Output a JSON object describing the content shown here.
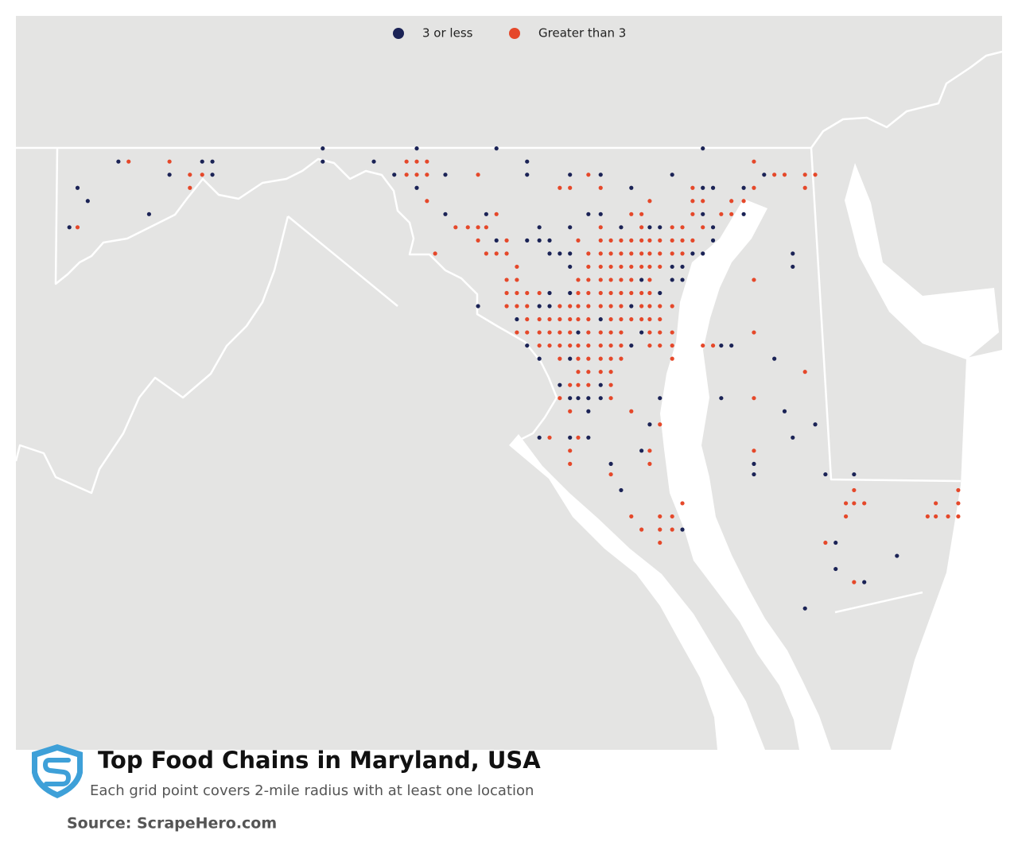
{
  "chart_data": {
    "type": "map",
    "title": "Top Food Chains in Maryland, USA",
    "subtitle": "Each grid point covers 2-mile radius with at least one location",
    "source": "Source: ScrapeHero.com",
    "series": [
      {
        "name": "3 or less",
        "color": "#1b2356",
        "lon": [
          -78.18,
          -77.72,
          -77.33,
          -76.32,
          -79.18,
          -78.77,
          -78.72,
          -78.18,
          -77.93,
          -77.18,
          -78.93,
          -78.72,
          -77.83,
          -77.58,
          -77.18,
          -76.97,
          -76.82,
          -76.47,
          -76.02,
          -79.38,
          -77.72,
          -76.67,
          -76.32,
          -76.27,
          -76.12,
          -79.33,
          -79.03,
          -77.58,
          -77.38,
          -76.88,
          -76.82,
          -76.32,
          -76.12,
          -79.42,
          -77.12,
          -76.97,
          -76.72,
          -76.58,
          -76.53,
          -76.27,
          -77.33,
          -77.18,
          -77.12,
          -77.07,
          -76.27,
          -77.07,
          -77.02,
          -76.97,
          -76.37,
          -76.32,
          -75.88,
          -76.97,
          -76.47,
          -76.42,
          -75.88,
          -76.62,
          -76.47,
          -76.42,
          -77.07,
          -76.97,
          -76.53,
          -77.42,
          -77.12,
          -77.07,
          -76.67,
          -77.23,
          -76.82,
          -76.93,
          -76.62,
          -77.18,
          -76.67,
          -76.23,
          -76.18,
          -77.12,
          -76.97,
          -75.97,
          -77.02,
          -76.82,
          -76.97,
          -76.93,
          -76.88,
          -76.82,
          -76.53,
          -76.23,
          -76.88,
          -75.92,
          -76.58,
          -75.77,
          -77.12,
          -76.97,
          -76.88,
          -75.88,
          -76.62,
          -76.77,
          -76.07,
          -76.07,
          -75.72,
          -75.58,
          -76.72,
          -76.42,
          -75.67,
          -75.37,
          -75.67,
          -75.53,
          -75.82
        ],
        "lat": [
          39.72,
          39.72,
          39.72,
          39.72,
          39.67,
          39.67,
          39.67,
          39.67,
          39.67,
          39.67,
          39.62,
          39.62,
          39.62,
          39.62,
          39.62,
          39.62,
          39.62,
          39.62,
          39.62,
          39.57,
          39.57,
          39.57,
          39.57,
          39.57,
          39.57,
          39.52,
          39.47,
          39.47,
          39.47,
          39.47,
          39.47,
          39.47,
          39.47,
          39.42,
          39.42,
          39.42,
          39.42,
          39.42,
          39.42,
          39.42,
          39.37,
          39.37,
          39.37,
          39.37,
          39.37,
          39.32,
          39.32,
          39.32,
          39.32,
          39.32,
          39.32,
          39.27,
          39.27,
          39.27,
          39.27,
          39.22,
          39.22,
          39.22,
          39.17,
          39.17,
          39.17,
          39.12,
          39.12,
          39.12,
          39.12,
          39.07,
          39.07,
          39.02,
          39.02,
          38.97,
          38.97,
          38.97,
          38.97,
          38.92,
          38.92,
          38.92,
          38.82,
          38.82,
          38.77,
          38.77,
          38.77,
          38.77,
          38.77,
          38.77,
          38.72,
          38.72,
          38.67,
          38.67,
          38.62,
          38.62,
          38.62,
          38.62,
          38.57,
          38.52,
          38.52,
          38.48,
          38.48,
          38.48,
          38.42,
          38.27,
          38.22,
          38.17,
          38.12,
          38.07,
          37.97
        ]
      },
      {
        "name": "Greater than 3",
        "color": "#e5482a",
        "lon": [
          -79.13,
          -78.93,
          -77.77,
          -77.72,
          -77.67,
          -76.07,
          -78.83,
          -78.77,
          -77.77,
          -77.72,
          -77.67,
          -77.42,
          -76.88,
          -75.97,
          -75.92,
          -75.82,
          -75.77,
          -78.83,
          -77.02,
          -76.97,
          -76.82,
          -76.37,
          -76.07,
          -75.82,
          -77.67,
          -76.58,
          -76.37,
          -76.32,
          -76.18,
          -76.12,
          -77.33,
          -76.67,
          -76.62,
          -76.37,
          -76.23,
          -76.18,
          -79.38,
          -77.53,
          -77.47,
          -77.42,
          -77.38,
          -76.82,
          -76.62,
          -76.47,
          -76.42,
          -76.32,
          -77.42,
          -77.28,
          -76.93,
          -76.82,
          -76.77,
          -76.72,
          -76.67,
          -76.62,
          -76.58,
          -76.53,
          -76.47,
          -76.42,
          -76.37,
          -77.63,
          -77.38,
          -77.33,
          -77.28,
          -76.88,
          -76.82,
          -76.77,
          -76.72,
          -76.67,
          -76.62,
          -76.58,
          -76.53,
          -76.47,
          -76.42,
          -77.23,
          -76.88,
          -76.82,
          -76.77,
          -76.72,
          -76.67,
          -76.62,
          -76.58,
          -76.53,
          -77.28,
          -77.23,
          -76.93,
          -76.88,
          -76.82,
          -76.77,
          -76.72,
          -76.67,
          -76.58,
          -76.07,
          -77.28,
          -77.23,
          -77.18,
          -77.12,
          -76.93,
          -76.88,
          -76.82,
          -76.77,
          -76.72,
          -76.67,
          -76.62,
          -76.58,
          -77.28,
          -77.23,
          -77.18,
          -77.02,
          -76.97,
          -76.93,
          -76.88,
          -76.82,
          -76.77,
          -76.72,
          -76.62,
          -76.58,
          -76.53,
          -76.47,
          -77.18,
          -77.12,
          -77.07,
          -77.02,
          -76.97,
          -76.93,
          -76.88,
          -76.77,
          -76.72,
          -76.67,
          -76.62,
          -76.58,
          -76.53,
          -77.23,
          -77.18,
          -77.12,
          -77.07,
          -77.02,
          -76.97,
          -76.88,
          -76.82,
          -76.77,
          -76.72,
          -76.58,
          -76.53,
          -76.47,
          -76.07,
          -77.12,
          -77.07,
          -77.02,
          -76.97,
          -76.93,
          -76.88,
          -76.82,
          -76.77,
          -76.72,
          -76.58,
          -76.53,
          -76.47,
          -76.32,
          -76.27,
          -77.02,
          -76.93,
          -76.88,
          -76.82,
          -76.77,
          -76.72,
          -76.47,
          -76.93,
          -76.88,
          -76.82,
          -76.77,
          -75.82,
          -76.97,
          -76.93,
          -76.88,
          -76.77,
          -77.02,
          -76.77,
          -76.07,
          -76.97,
          -76.67,
          -76.53,
          -77.07,
          -76.93,
          -76.97,
          -76.58,
          -76.07,
          -76.97,
          -76.58,
          -76.77,
          -75.58,
          -75.07,
          -76.42,
          -75.62,
          -75.58,
          -75.53,
          -75.18,
          -75.07,
          -76.67,
          -76.53,
          -76.47,
          -75.62,
          -75.22,
          -75.18,
          -75.12,
          -75.07,
          -76.62,
          -76.53,
          -76.47,
          -76.53,
          -75.72,
          -75.58
        ],
        "lat": [
          39.67,
          39.67,
          39.67,
          39.67,
          39.67,
          39.67,
          39.62,
          39.62,
          39.62,
          39.62,
          39.62,
          39.62,
          39.62,
          39.62,
          39.62,
          39.62,
          39.62,
          39.57,
          39.57,
          39.57,
          39.57,
          39.57,
          39.57,
          39.57,
          39.52,
          39.52,
          39.52,
          39.52,
          39.52,
          39.52,
          39.47,
          39.47,
          39.47,
          39.47,
          39.47,
          39.47,
          39.42,
          39.42,
          39.42,
          39.42,
          39.42,
          39.42,
          39.42,
          39.42,
          39.42,
          39.42,
          39.37,
          39.37,
          39.37,
          39.37,
          39.37,
          39.37,
          39.37,
          39.37,
          39.37,
          39.37,
          39.37,
          39.37,
          39.37,
          39.32,
          39.32,
          39.32,
          39.32,
          39.32,
          39.32,
          39.32,
          39.32,
          39.32,
          39.32,
          39.32,
          39.32,
          39.32,
          39.32,
          39.27,
          39.27,
          39.27,
          39.27,
          39.27,
          39.27,
          39.27,
          39.27,
          39.27,
          39.22,
          39.22,
          39.22,
          39.22,
          39.22,
          39.22,
          39.22,
          39.22,
          39.22,
          39.22,
          39.17,
          39.17,
          39.17,
          39.17,
          39.17,
          39.17,
          39.17,
          39.17,
          39.17,
          39.17,
          39.17,
          39.17,
          39.12,
          39.12,
          39.12,
          39.12,
          39.12,
          39.12,
          39.12,
          39.12,
          39.12,
          39.12,
          39.12,
          39.12,
          39.12,
          39.12,
          39.07,
          39.07,
          39.07,
          39.07,
          39.07,
          39.07,
          39.07,
          39.07,
          39.07,
          39.07,
          39.07,
          39.07,
          39.07,
          39.02,
          39.02,
          39.02,
          39.02,
          39.02,
          39.02,
          39.02,
          39.02,
          39.02,
          39.02,
          39.02,
          39.02,
          39.02,
          39.02,
          38.97,
          38.97,
          38.97,
          38.97,
          38.97,
          38.97,
          38.97,
          38.97,
          38.97,
          38.97,
          38.97,
          38.97,
          38.97,
          38.97,
          38.92,
          38.92,
          38.92,
          38.92,
          38.92,
          38.92,
          38.92,
          38.87,
          38.87,
          38.87,
          38.87,
          38.87,
          38.82,
          38.82,
          38.82,
          38.82,
          38.77,
          38.77,
          38.77,
          38.72,
          38.72,
          38.67,
          38.62,
          38.62,
          38.57,
          38.57,
          38.57,
          38.52,
          38.52,
          38.48,
          38.42,
          38.42,
          38.37,
          38.37,
          38.37,
          38.37,
          38.37,
          38.37,
          38.32,
          38.32,
          38.32,
          38.32,
          38.32,
          38.32,
          38.32,
          38.32,
          38.27,
          38.27,
          38.27,
          38.22,
          38.22,
          38.07
        ]
      }
    ]
  }
}
